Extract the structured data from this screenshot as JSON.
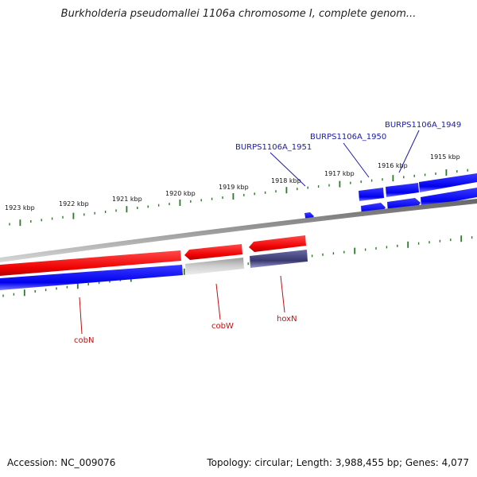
{
  "title": "Burkholderia pseudomallei 1106a chromosome I, complete genom...",
  "footer": {
    "accession": "Accession: NC_009076",
    "summary": "Topology: circular; Length: 3,988,455 bp; Genes: 4,077"
  },
  "scale_labels": [
    "1923 kbp",
    "1922 kbp",
    "1921 kbp",
    "1920 kbp",
    "1919 kbp",
    "1918 kbp",
    "1917 kbp",
    "1916 kbp",
    "1915 kbp"
  ],
  "gene_labels": {
    "top": [
      "BURPS1106A_1951",
      "BURPS1106A_1950",
      "BURPS1106A_1949"
    ],
    "bottom": [
      "cobN",
      "cobW",
      "hoxN"
    ]
  },
  "colors": {
    "forward_cds": "#ff0000",
    "reverse_cds": "#0000ff",
    "backbone": "#808080",
    "ticks": "#2a7a2a",
    "label_top": "#1a1aaa",
    "label_bottom": "#bb1111",
    "pseudo": "#bbbbbb",
    "other": "#44448a"
  }
}
